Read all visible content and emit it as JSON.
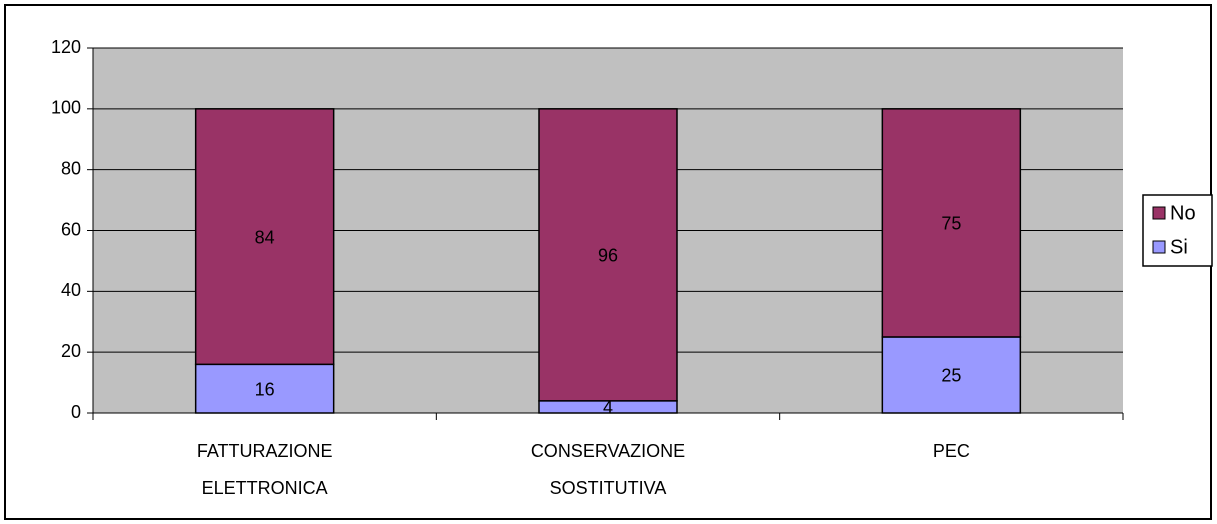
{
  "chart_data": {
    "type": "stacked_bar",
    "categories": [
      [
        "FATTURAZIONE",
        "ELETTRONICA"
      ],
      [
        "CONSERVAZIONE",
        "SOSTITUTIVA"
      ],
      [
        "PEC"
      ]
    ],
    "series": [
      {
        "name": "Si",
        "color": "#9999ff",
        "values": [
          16,
          4,
          25
        ]
      },
      {
        "name": "No",
        "color": "#993366",
        "values": [
          84,
          96,
          75
        ]
      }
    ],
    "ylim": [
      0,
      120
    ],
    "yticks": [
      0,
      20,
      40,
      60,
      80,
      100,
      120
    ],
    "grid": true,
    "legend": "right"
  }
}
